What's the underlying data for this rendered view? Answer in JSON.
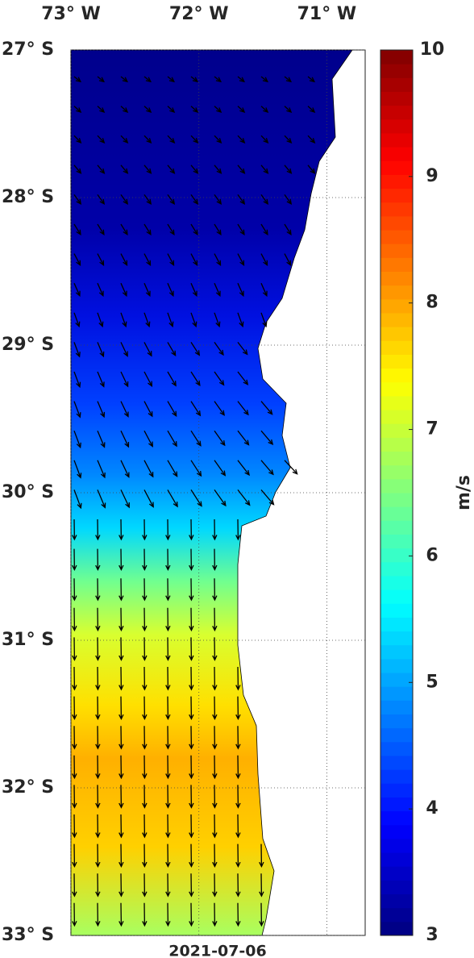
{
  "map": {
    "date": "2021-07-06",
    "lon_axis": {
      "lim": [
        -73,
        -70.7
      ],
      "ticks": [
        {
          "value": -73,
          "label": "73° W"
        },
        {
          "value": -72,
          "label": "72° W"
        },
        {
          "value": -71,
          "label": "71° W"
        }
      ]
    },
    "lat_axis": {
      "lim": [
        -27,
        -33
      ],
      "ticks": [
        {
          "value": -27,
          "label": "27° S"
        },
        {
          "value": -28,
          "label": "28° S"
        },
        {
          "value": -29,
          "label": "29° S"
        },
        {
          "value": -30,
          "label": "30° S"
        },
        {
          "value": -31,
          "label": "31° S"
        },
        {
          "value": -32,
          "label": "32° S"
        },
        {
          "value": -33,
          "label": "33° S"
        }
      ]
    },
    "colorbar": {
      "label": "m/s",
      "lim": [
        3,
        10
      ],
      "ticks": [
        3,
        4,
        5,
        6,
        7,
        8,
        9,
        10
      ]
    }
  }
}
